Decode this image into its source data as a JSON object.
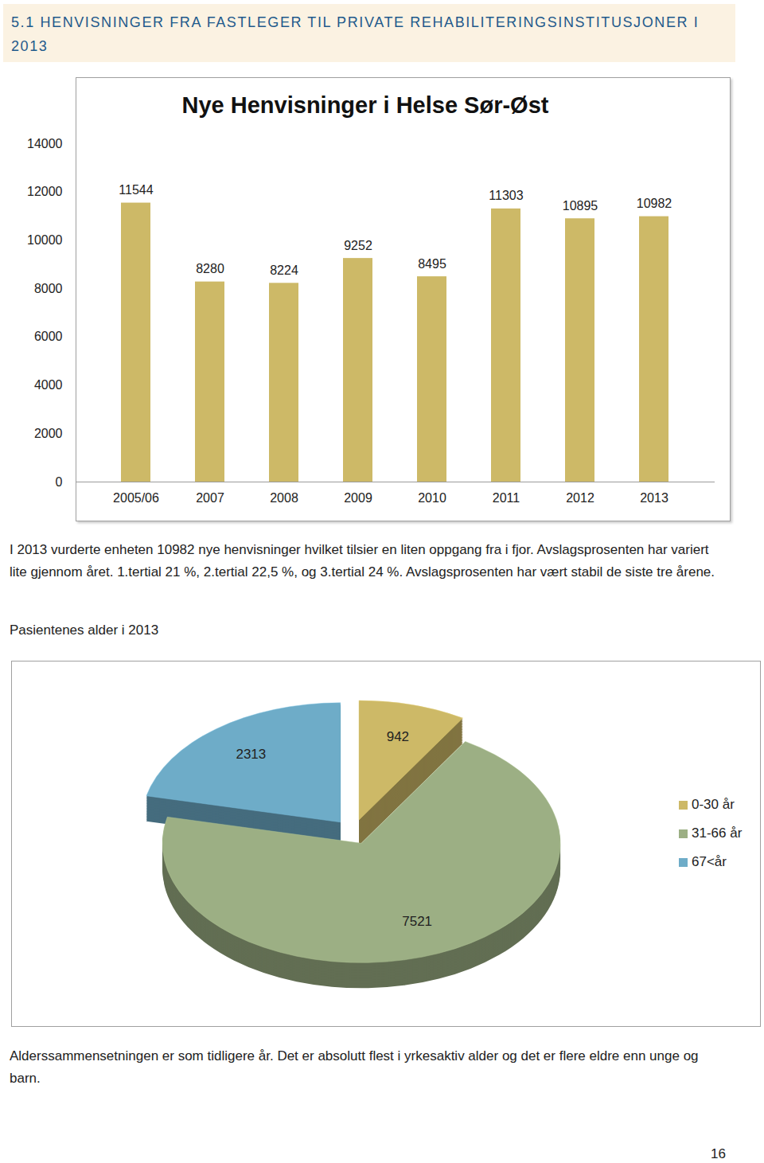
{
  "header": {
    "section": "5.1",
    "title": "HENVISNINGER FRA FASTLEGER TIL PRIVATE REHABILITERINGSINSTITUSJONER I 2013"
  },
  "chart_data": [
    {
      "type": "bar",
      "title": "Nye Henvisninger i Helse Sør-Øst",
      "categories": [
        "2005/06",
        "2007",
        "2008",
        "2009",
        "2010",
        "2011",
        "2012",
        "2013"
      ],
      "values": [
        11544,
        8280,
        8224,
        9252,
        8495,
        11303,
        10895,
        10982
      ],
      "color": "#cdb967",
      "ylim": [
        0,
        14000
      ],
      "yticks": [
        0,
        2000,
        4000,
        6000,
        8000,
        10000,
        12000,
        14000
      ],
      "grid": false,
      "data_labels": true
    },
    {
      "type": "pie",
      "title": "Pasientenes alder i 2013",
      "categories": [
        "0-30 år",
        "31-66 år",
        "67<år"
      ],
      "values": [
        942,
        7521,
        2313
      ],
      "colors": [
        "#cdb967",
        "#9caf84",
        "#6eacc8"
      ],
      "data_labels": true,
      "legend": "right"
    }
  ],
  "paragraphs": [
    "I 2013 vurderte enheten 10982 nye henvisninger hvilket tilsier en liten oppgang fra i fjor. Avslagsprosenten har variert lite gjennom året. 1.tertial 21 %, 2.tertial 22,5 %, og 3.tertial 24 %. Avslagsprosenten har vært stabil de siste tre årene.",
    "Alderssammensetningen er som tidligere år. Det er absolutt flest i yrkesaktiv alder og det er flere eldre enn unge og barn."
  ],
  "page_number": 16
}
